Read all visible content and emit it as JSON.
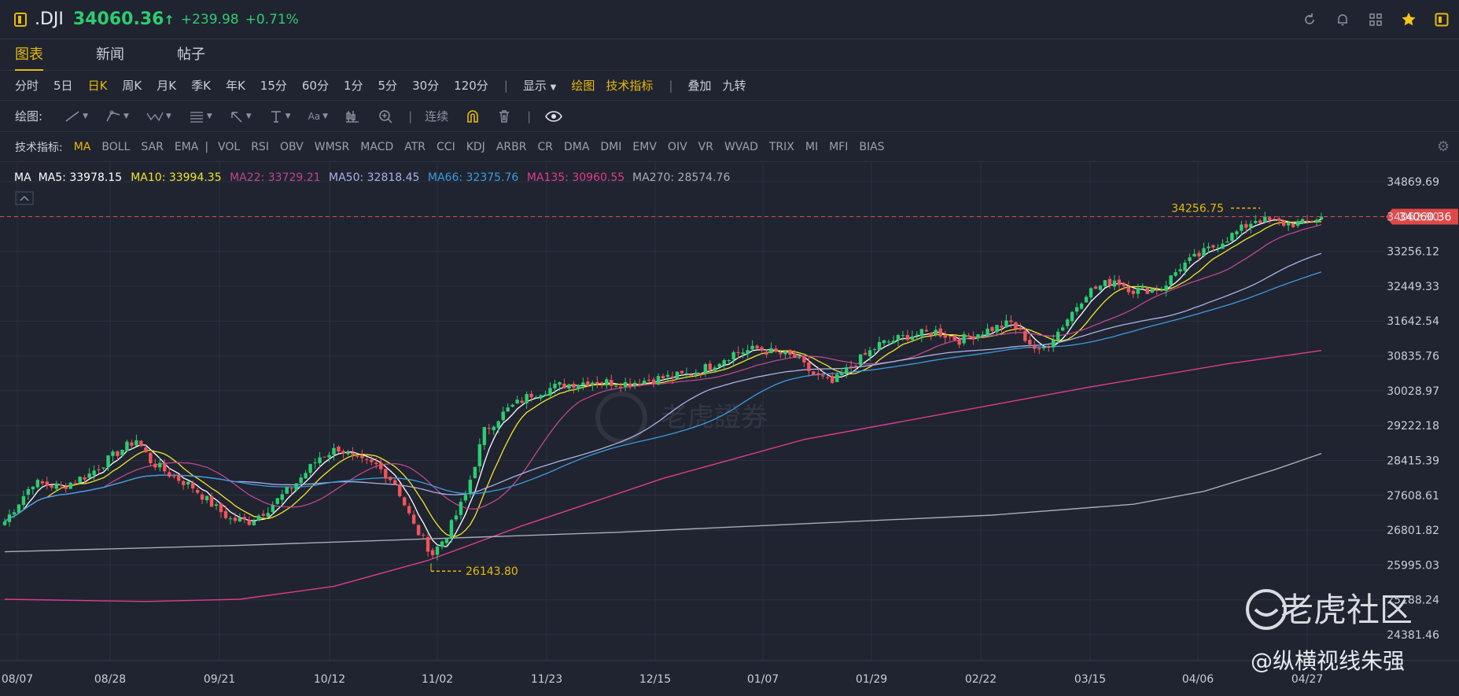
{
  "header": {
    "symbol": ".DJI",
    "price": "34060.36",
    "arrow": "↑",
    "change": "+239.98",
    "change_pct": "+0.71%",
    "icons": [
      "refresh-icon",
      "bell-icon",
      "grid-icon",
      "star-icon",
      "sidebar-icon"
    ]
  },
  "tabs": [
    {
      "label": "图表",
      "active": true
    },
    {
      "label": "新闻"
    },
    {
      "label": "帖子"
    }
  ],
  "periods": [
    "分时",
    "5日",
    "日K",
    "周K",
    "月K",
    "季K",
    "年K",
    "15分",
    "60分",
    "1分",
    "5分",
    "30分",
    "120分"
  ],
  "period_active": "日K",
  "period_extra": {
    "display": "显示",
    "draw": "绘图",
    "indicators": "技术指标",
    "overlay": "叠加",
    "nine": "九转"
  },
  "drawbar": {
    "label": "绘图:",
    "aa": "Aa",
    "continuous": "连续"
  },
  "indicator_bar": {
    "label": "技术指标:",
    "items": [
      "MA",
      "BOLL",
      "SAR",
      "EMA",
      "VOL",
      "RSI",
      "OBV",
      "WMSR",
      "MACD",
      "ATR",
      "CCI",
      "KDJ",
      "ARBR",
      "CR",
      "DMA",
      "DMI",
      "EMV",
      "OIV",
      "VR",
      "WVAD",
      "TRIX",
      "MI",
      "MFI",
      "BIAS"
    ],
    "active": "MA"
  },
  "ma_legend": [
    {
      "label": "MA",
      "value": "",
      "color": "#ffffff"
    },
    {
      "label": "MA5:",
      "value": "33978.15",
      "color": "#ffffff"
    },
    {
      "label": "MA10:",
      "value": "33994.35",
      "color": "#f3e52c"
    },
    {
      "label": "MA22:",
      "value": "33729.21",
      "color": "#c0468f"
    },
    {
      "label": "MA50:",
      "value": "32818.45",
      "color": "#a9b3e8"
    },
    {
      "label": "MA66:",
      "value": "32375.76",
      "color": "#3d9be0"
    },
    {
      "label": "MA135:",
      "value": "30960.55",
      "color": "#e23c8d"
    },
    {
      "label": "MA270:",
      "value": "28574.76",
      "color": "#a8adb8"
    }
  ],
  "chart_data": {
    "type": "candlestick",
    "y_ticks": [
      "34869.69",
      "34062.90",
      "33256.12",
      "32449.33",
      "31642.54",
      "30835.76",
      "30028.97",
      "29222.18",
      "28415.39",
      "27608.61",
      "26801.82",
      "25995.03",
      "25188.24",
      "24381.46"
    ],
    "x_ticks": [
      "08/07",
      "08/28",
      "09/21",
      "10/12",
      "11/02",
      "11/23",
      "12/15",
      "01/07",
      "01/29",
      "02/22",
      "03/15",
      "04/06",
      "04/27"
    ],
    "last_price": "34060.36",
    "high_label": "34256.75",
    "low_label": "26143.80",
    "colors": {
      "up": "#2ecc71",
      "down": "#f2545b"
    }
  },
  "watermark": {
    "brand": "老虎證券",
    "community": "老虎社区",
    "author": "@纵横视线朱强"
  }
}
